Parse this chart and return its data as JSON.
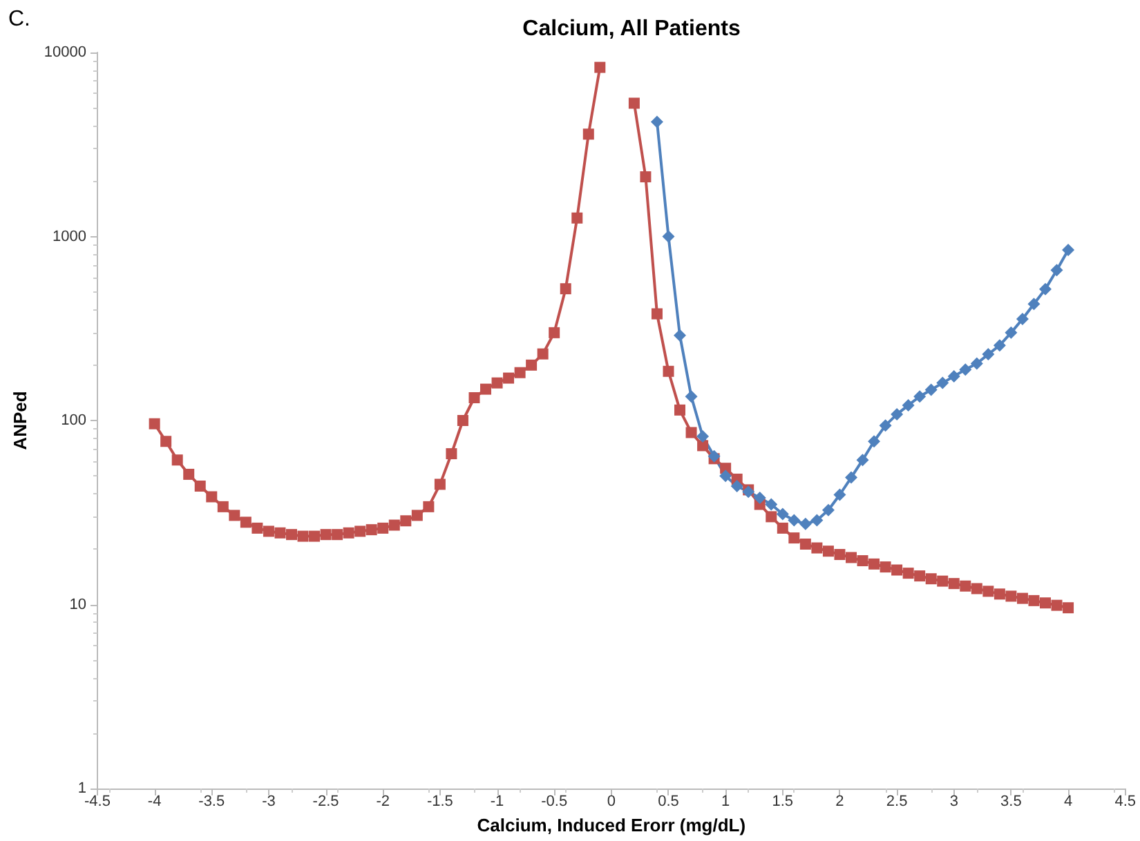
{
  "chart_data": {
    "type": "line",
    "title": "Calcium, All Patients",
    "xlabel": "Calcium, Induced Erorr (mg/dL)",
    "ylabel": "ANPed",
    "annotations": [
      "C."
    ],
    "log": "y",
    "grid": false,
    "line_style": "solid",
    "xlim": [
      -4.5,
      4.5
    ],
    "xticks": [
      -4.5,
      -4,
      -3.5,
      -3,
      -2.5,
      -2,
      -1.5,
      -1,
      -0.5,
      0,
      0.5,
      1,
      1.5,
      2,
      2.5,
      3,
      3.5,
      4,
      4.5
    ],
    "ylim": [
      1,
      10000
    ],
    "yticks": [
      1,
      10,
      100,
      1000,
      10000
    ],
    "series": [
      {
        "color": "#c0504d",
        "marker": "square",
        "x": [
          -4,
          -3.9,
          -3.8,
          -3.7,
          -3.6,
          -3.5,
          -3.4,
          -3.3,
          -3.2,
          -3.1,
          -3,
          -2.9,
          -2.8,
          -2.7,
          -2.6,
          -2.5,
          -2.4,
          -2.3,
          -2.2,
          -2.1,
          -2,
          -1.9,
          -1.8,
          -1.7,
          -1.6,
          -1.5,
          -1.4,
          -1.3,
          -1.2,
          -1.1,
          -1,
          -0.9,
          -0.8,
          -0.7,
          -0.6,
          -0.5,
          -0.4,
          -0.3,
          -0.2,
          -0.1,
          0,
          0.2,
          0.3,
          0.4,
          0.5,
          0.6,
          0.7,
          0.8,
          0.9,
          1,
          1.1,
          1.2,
          1.3,
          1.4,
          1.5,
          1.6,
          1.7,
          1.8,
          1.9,
          2,
          2.1,
          2.2,
          2.3,
          2.4,
          2.5,
          2.6,
          2.7,
          2.8,
          2.9,
          3,
          3.1,
          3.2,
          3.3,
          3.4,
          3.5,
          3.6,
          3.7,
          3.8,
          3.9,
          4
        ],
        "values": [
          96,
          77,
          61,
          51,
          44,
          38.5,
          34,
          30.5,
          28,
          26,
          25,
          24.5,
          24,
          23.5,
          23.5,
          24,
          24,
          24.5,
          25,
          25.5,
          26,
          27,
          28.5,
          30.5,
          34,
          45,
          66,
          100,
          133,
          148,
          160,
          170,
          182,
          200,
          230,
          300,
          520,
          1260,
          3600,
          8300,
          null,
          5300,
          2110,
          380,
          185,
          114,
          86,
          73,
          62,
          55,
          48,
          42,
          35,
          30,
          26,
          23,
          21.3,
          20.3,
          19.5,
          18.7,
          18,
          17.3,
          16.6,
          16,
          15.4,
          14.8,
          14.3,
          13.8,
          13.4,
          13,
          12.6,
          12.2,
          11.8,
          11.4,
          11.1,
          10.8,
          10.5,
          10.2,
          9.9,
          9.6
        ]
      },
      {
        "color": "#4f81bd",
        "marker": "diamond",
        "x": [
          0.4,
          0.5,
          0.6,
          0.7,
          0.8,
          0.9,
          1,
          1.1,
          1.2,
          1.3,
          1.4,
          1.5,
          1.6,
          1.7,
          1.8,
          1.9,
          2,
          2.1,
          2.2,
          2.3,
          2.4,
          2.5,
          2.6,
          2.7,
          2.8,
          2.9,
          3,
          3.1,
          3.2,
          3.3,
          3.4,
          3.5,
          3.6,
          3.7,
          3.8,
          3.9,
          4
        ],
        "values": [
          4200,
          1000,
          290,
          135,
          82,
          64,
          50,
          44,
          41,
          38,
          35,
          31,
          28.7,
          27.4,
          28.7,
          32.6,
          39.5,
          49,
          61,
          77,
          94,
          108,
          121,
          135,
          147,
          160,
          174,
          189,
          204,
          229,
          256,
          300,
          356,
          430,
          518,
          656,
          845
        ]
      }
    ]
  }
}
